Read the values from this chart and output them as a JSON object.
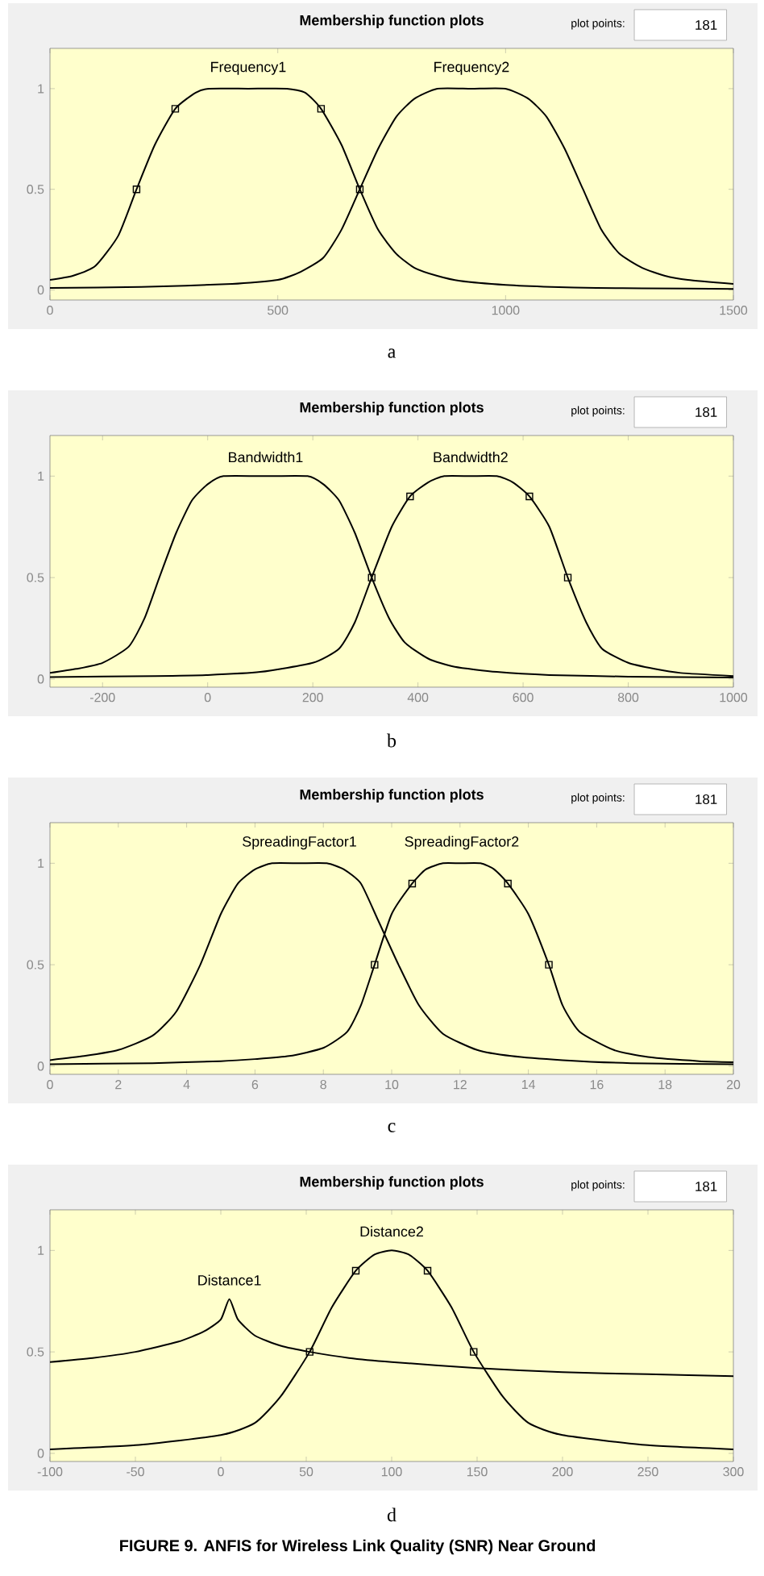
{
  "chart_data": [
    {
      "type": "line",
      "title": "Membership function plots",
      "xlim": [
        0,
        1500
      ],
      "ylim": [
        -0.05,
        1.2
      ],
      "xticks": [
        0,
        500,
        1000,
        1500
      ],
      "yticks": [
        0,
        0.5,
        1
      ],
      "marker": "none",
      "line_style": "solid",
      "annotations": [
        "plot points:",
        "181",
        "a"
      ],
      "series": [
        {
          "name": "Frequency1",
          "color": "#000000",
          "x": [
            0,
            50,
            100,
            150,
            190,
            230,
            275,
            320,
            350,
            435,
            520,
            560,
            595,
            640,
            680,
            720,
            760,
            800,
            850,
            900,
            1000,
            1100,
            1200,
            1300,
            1500
          ],
          "values": [
            0.05,
            0.07,
            0.12,
            0.27,
            0.5,
            0.72,
            0.9,
            0.98,
            1.0,
            1.0,
            1.0,
            0.98,
            0.9,
            0.72,
            0.5,
            0.3,
            0.18,
            0.11,
            0.07,
            0.045,
            0.025,
            0.015,
            0.01,
            0.008,
            0.005
          ]
        },
        {
          "name": "Frequency2",
          "color": "#000000",
          "x": [
            0,
            200,
            400,
            500,
            550,
            600,
            640,
            680,
            720,
            760,
            800,
            850,
            925,
            1000,
            1050,
            1090,
            1130,
            1170,
            1210,
            1250,
            1300,
            1350,
            1400,
            1500
          ],
          "values": [
            0.01,
            0.015,
            0.03,
            0.05,
            0.09,
            0.16,
            0.3,
            0.5,
            0.7,
            0.86,
            0.95,
            1.0,
            1.0,
            1.0,
            0.95,
            0.86,
            0.7,
            0.5,
            0.3,
            0.18,
            0.11,
            0.07,
            0.05,
            0.03
          ]
        },
        {
          "type": "scatter",
          "marker": "square",
          "color": "#000000",
          "x": [
            190,
            275,
            595,
            680
          ],
          "values": [
            0.5,
            0.9,
            0.9,
            0.5
          ]
        }
      ]
    },
    {
      "type": "line",
      "title": "Membership function plots",
      "xlim": [
        -300,
        1000
      ],
      "ylim": [
        -0.04,
        1.2
      ],
      "xticks": [
        -200,
        0,
        200,
        400,
        600,
        800,
        1000
      ],
      "yticks": [
        0,
        0.5,
        1
      ],
      "marker": "none",
      "line_style": "solid",
      "annotations": [
        "plot points:",
        "181",
        "b"
      ],
      "series": [
        {
          "name": "Bandwidth1",
          "color": "#000000",
          "x": [
            -300,
            -250,
            -200,
            -150,
            -120,
            -92,
            -60,
            -30,
            0,
            30,
            110,
            190,
            220,
            250,
            280,
            312,
            345,
            375,
            420,
            470,
            550,
            650,
            800,
            1000
          ],
          "values": [
            0.03,
            0.05,
            0.08,
            0.16,
            0.3,
            0.5,
            0.72,
            0.88,
            0.96,
            1.0,
            1.0,
            1.0,
            0.96,
            0.88,
            0.72,
            0.5,
            0.3,
            0.18,
            0.1,
            0.06,
            0.035,
            0.02,
            0.012,
            0.008
          ]
        },
        {
          "name": "Bandwidth2",
          "color": "#000000",
          "x": [
            -300,
            -100,
            0,
            100,
            200,
            250,
            280,
            312,
            350,
            385,
            420,
            450,
            500,
            550,
            580,
            612,
            650,
            685,
            720,
            750,
            800,
            850,
            900,
            1000
          ],
          "values": [
            0.01,
            0.015,
            0.02,
            0.035,
            0.08,
            0.15,
            0.28,
            0.5,
            0.75,
            0.9,
            0.97,
            1.0,
            1.0,
            1.0,
            0.97,
            0.9,
            0.75,
            0.5,
            0.28,
            0.15,
            0.08,
            0.05,
            0.03,
            0.015
          ]
        },
        {
          "type": "scatter",
          "marker": "square",
          "color": "#000000",
          "x": [
            312,
            385,
            612,
            685
          ],
          "values": [
            0.5,
            0.9,
            0.9,
            0.5
          ]
        }
      ]
    },
    {
      "type": "line",
      "title": "Membership function plots",
      "xlim": [
        0,
        20
      ],
      "ylim": [
        -0.04,
        1.2
      ],
      "xticks": [
        0,
        2,
        4,
        6,
        8,
        10,
        12,
        14,
        16,
        18,
        20
      ],
      "yticks": [
        0,
        0.5,
        1
      ],
      "marker": "none",
      "line_style": "solid",
      "annotations": [
        "plot points:",
        "181",
        "c"
      ],
      "series": [
        {
          "name": "SpreadingFactor1",
          "color": "#000000",
          "x": [
            0,
            1,
            2,
            3,
            3.7,
            4.4,
            5,
            5.5,
            6,
            6.5,
            7.3,
            8.1,
            8.6,
            9.1,
            9.6,
            10.2,
            10.8,
            11.5,
            12.5,
            13.5,
            15,
            17,
            20
          ],
          "values": [
            0.03,
            0.05,
            0.08,
            0.15,
            0.27,
            0.5,
            0.75,
            0.9,
            0.97,
            1.0,
            1.0,
            1.0,
            0.97,
            0.9,
            0.72,
            0.5,
            0.3,
            0.16,
            0.08,
            0.05,
            0.03,
            0.015,
            0.01
          ]
        },
        {
          "name": "SpreadingFactor2",
          "color": "#000000",
          "x": [
            0,
            3,
            5,
            6,
            7,
            8,
            8.7,
            9.1,
            9.5,
            10,
            10.6,
            11,
            11.5,
            12,
            12.6,
            13,
            13.4,
            14,
            14.6,
            15,
            15.5,
            16.5,
            17.5,
            19,
            20
          ],
          "values": [
            0.01,
            0.015,
            0.025,
            0.035,
            0.05,
            0.09,
            0.17,
            0.3,
            0.5,
            0.75,
            0.9,
            0.97,
            1.0,
            1.0,
            1.0,
            0.97,
            0.9,
            0.75,
            0.5,
            0.3,
            0.17,
            0.08,
            0.045,
            0.025,
            0.02
          ]
        },
        {
          "type": "scatter",
          "marker": "square",
          "color": "#000000",
          "x": [
            9.5,
            10.6,
            13.4,
            14.6
          ],
          "values": [
            0.5,
            0.9,
            0.9,
            0.5
          ]
        }
      ]
    },
    {
      "type": "line",
      "title": "Membership function plots",
      "xlim": [
        -100,
        300
      ],
      "ylim": [
        -0.04,
        1.2
      ],
      "xticks": [
        -100,
        -50,
        0,
        50,
        100,
        150,
        200,
        250,
        300
      ],
      "yticks": [
        0,
        0.5,
        1
      ],
      "marker": "none",
      "line_style": "solid",
      "annotations": [
        "plot points:",
        "181",
        "d",
        "FIGURE 9. ANFIS for Wireless Link Quality (SNR) Near Ground"
      ],
      "series": [
        {
          "name": "Distance1",
          "color": "#000000",
          "x": [
            -100,
            -75,
            -50,
            -25,
            -10,
            0,
            5,
            10,
            20,
            35,
            52,
            75,
            100,
            150,
            200,
            250,
            300
          ],
          "values": [
            0.45,
            0.47,
            0.5,
            0.55,
            0.6,
            0.66,
            0.76,
            0.66,
            0.58,
            0.53,
            0.5,
            0.47,
            0.45,
            0.42,
            0.4,
            0.39,
            0.38
          ]
        },
        {
          "name": "Distance2",
          "color": "#000000",
          "x": [
            -100,
            -50,
            0,
            20,
            35,
            52,
            65,
            79,
            90,
            100,
            110,
            121,
            135,
            148,
            165,
            180,
            200,
            250,
            300
          ],
          "values": [
            0.02,
            0.04,
            0.09,
            0.15,
            0.28,
            0.5,
            0.72,
            0.9,
            0.98,
            1.0,
            0.98,
            0.9,
            0.72,
            0.5,
            0.28,
            0.15,
            0.09,
            0.04,
            0.02
          ]
        },
        {
          "type": "scatter",
          "marker": "square",
          "color": "#000000",
          "x": [
            52,
            79,
            121,
            148
          ],
          "values": [
            0.5,
            0.9,
            0.9,
            0.5
          ]
        }
      ]
    }
  ]
}
